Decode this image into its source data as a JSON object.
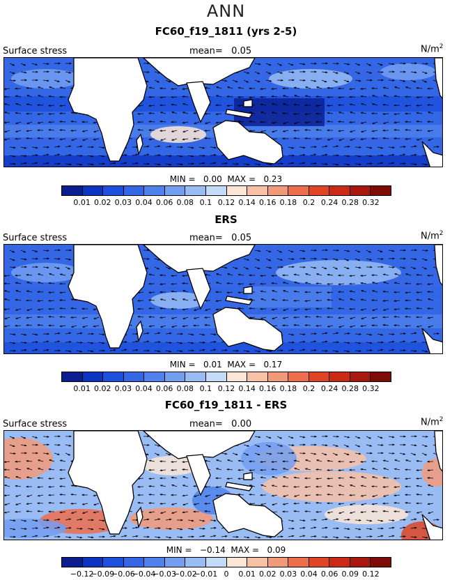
{
  "main_title": "ANN",
  "variable_label": "Surface stress",
  "unit_label": "N/m",
  "unit_exponent": "2",
  "mean_prefix": "mean=",
  "min_prefix": "MIN =",
  "max_prefix": "MAX =",
  "colors": {
    "full": [
      "#0a1e8f",
      "#0c34c2",
      "#1c4fdc",
      "#3367e6",
      "#4f82ec",
      "#739ff1",
      "#99bcf5",
      "#c4dbf8",
      "#fbe6d6",
      "#f7c1a6",
      "#f29a78",
      "#ec6e4c",
      "#e04424",
      "#cc2a16",
      "#a8180f",
      "#7e0b07"
    ],
    "land": "#ffffff"
  },
  "panels": [
    {
      "title": "FC60_f19_1811 (yrs 2-5)",
      "mean": "0.05",
      "min": "0.00",
      "max": "0.23",
      "ticks": [
        "0.01",
        "0.02",
        "0.03",
        "0.04",
        "0.06",
        "0.08",
        "0.1",
        "0.12",
        "0.14",
        "0.16",
        "0.18",
        "0.2",
        "0.24",
        "0.28",
        "0.32"
      ]
    },
    {
      "title": "ERS",
      "mean": "0.05",
      "min": "0.01",
      "max": "0.17",
      "ticks": [
        "0.01",
        "0.02",
        "0.03",
        "0.04",
        "0.06",
        "0.08",
        "0.1",
        "0.12",
        "0.14",
        "0.16",
        "0.18",
        "0.2",
        "0.24",
        "0.28",
        "0.32"
      ]
    },
    {
      "title": "FC60_f19_1811 - ERS",
      "mean": "0.00",
      "min": "−0.14",
      "max": "0.09",
      "ticks": [
        "−0.12",
        "−0.09",
        "−0.06",
        "−0.04",
        "−0.03",
        "−0.02",
        "−0.01",
        "0",
        "0.01",
        "0.02",
        "0.03",
        "0.04",
        "0.06",
        "0.09",
        "0.12"
      ]
    }
  ],
  "chart_data": [
    {
      "type": "heatmap",
      "title": "FC60_f19_1811 (yrs 2-5)",
      "variable": "Surface stress",
      "units": "N/m2",
      "mean": 0.05,
      "min": 0.0,
      "max": 0.23,
      "colorbar_levels": [
        0.01,
        0.02,
        0.03,
        0.04,
        0.06,
        0.08,
        0.1,
        0.12,
        0.14,
        0.16,
        0.18,
        0.2,
        0.24,
        0.28,
        0.32
      ]
    },
    {
      "type": "heatmap",
      "title": "ERS",
      "variable": "Surface stress",
      "units": "N/m2",
      "mean": 0.05,
      "min": 0.01,
      "max": 0.17,
      "colorbar_levels": [
        0.01,
        0.02,
        0.03,
        0.04,
        0.06,
        0.08,
        0.1,
        0.12,
        0.14,
        0.16,
        0.18,
        0.2,
        0.24,
        0.28,
        0.32
      ]
    },
    {
      "type": "heatmap",
      "title": "FC60_f19_1811 - ERS",
      "variable": "Surface stress",
      "units": "N/m2",
      "mean": 0.0,
      "min": -0.14,
      "max": 0.09,
      "colorbar_levels": [
        -0.12,
        -0.09,
        -0.06,
        -0.04,
        -0.03,
        -0.02,
        -0.01,
        0,
        0.01,
        0.02,
        0.03,
        0.04,
        0.06,
        0.09,
        0.12
      ]
    }
  ]
}
